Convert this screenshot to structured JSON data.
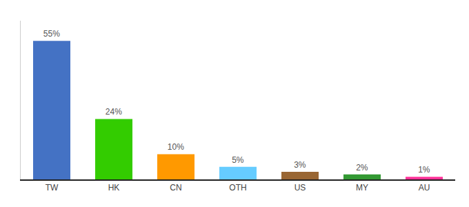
{
  "chart_data": {
    "type": "bar",
    "categories": [
      "TW",
      "HK",
      "CN",
      "OTH",
      "US",
      "MY",
      "AU"
    ],
    "values": [
      55,
      24,
      10,
      5,
      3,
      2,
      1
    ],
    "value_labels": [
      "55%",
      "24%",
      "10%",
      "5%",
      "3%",
      "2%",
      "1%"
    ],
    "colors": [
      "#4472C4",
      "#33CC00",
      "#FF9900",
      "#66CCFF",
      "#996633",
      "#339933",
      "#FF3399"
    ],
    "ylim": [
      0,
      63
    ],
    "data_labels": true,
    "grid": false,
    "tick_labels": "x"
  }
}
